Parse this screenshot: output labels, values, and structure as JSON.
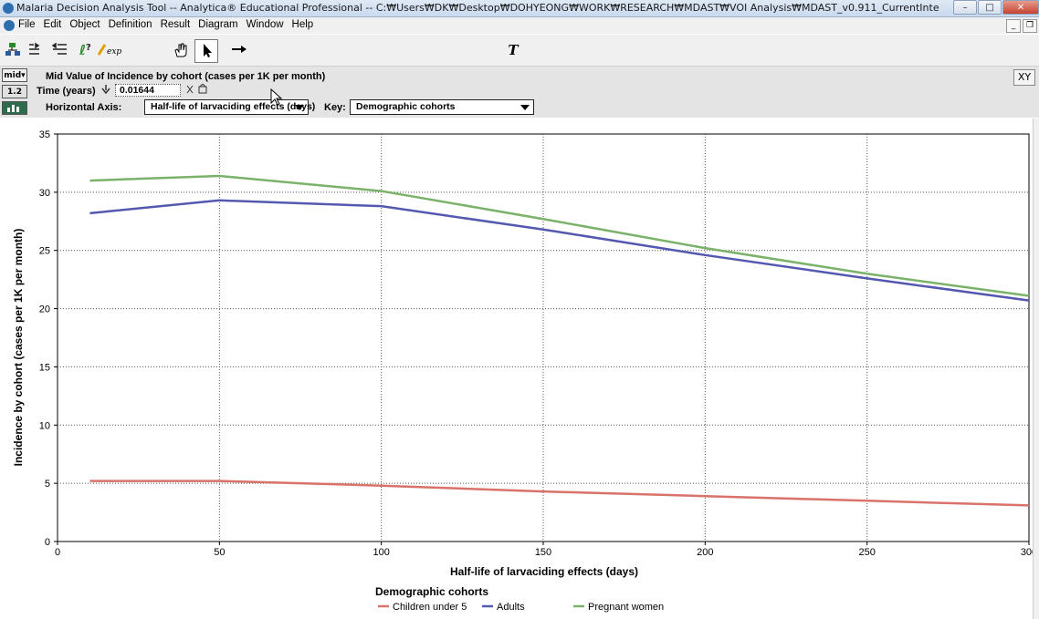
{
  "window": {
    "title": "Malaria Decision Analysis Tool -- Analytica® Educational Professional -- C:₩Users₩DK₩Desktop₩DOHYEONG₩WORK₩RESEARCH₩MDAST₩VOI Analysis₩MDAST_v0.911_CurrentInte"
  },
  "menu": [
    "File",
    "Edit",
    "Object",
    "Definition",
    "Result",
    "Diagram",
    "Window",
    "Help"
  ],
  "toolbar": {
    "tools": [
      "arrange-icon",
      "indent-icon",
      "outdent-icon",
      "help-query-icon",
      "expression-icon",
      "hand-browse-icon",
      "pointer-icon",
      "arrow-tool-icon",
      "decision-node-icon",
      "chance-node-icon",
      "objective-node-icon",
      "variable-node-icon",
      "constant-node-icon",
      "module-node-icon",
      "function-node-icon",
      "index-node-icon",
      "text-tool-icon"
    ],
    "text_tool_label": "T",
    "node_colors": [
      "#00cc00",
      "#00a0d8",
      "#00b8e0",
      "#e00000",
      "#0080c0",
      "#5020b0",
      "#c04000",
      "#a000a0"
    ]
  },
  "controls": {
    "mid_button": "mid▾",
    "table_button": "1.2",
    "chart_button": "▙",
    "result_title": "Mid Value of Incidence by cohort (cases per 1K per month)",
    "time_label": "Time (years)",
    "time_value": "0.01644",
    "horizontal_axis_label": "Horizontal Axis:",
    "horizontal_axis_value": "Half-life of larvaciding effects (days)",
    "key_label": "Key:",
    "key_value": "Demographic cohorts",
    "xy_button": "XY"
  },
  "chart_data": {
    "type": "line",
    "xlabel": "Half-life of larvaciding effects (days)",
    "ylabel": "Incidence by cohort (cases per 1K per month)",
    "xlim": [
      0,
      300
    ],
    "ylim": [
      0,
      35
    ],
    "xticks": [
      0,
      50,
      100,
      150,
      200,
      250,
      300
    ],
    "yticks": [
      0,
      5,
      10,
      15,
      20,
      25,
      30,
      35
    ],
    "grid": true,
    "legend_title": "Demographic cohorts",
    "legend_position": "bottom",
    "series": [
      {
        "name": "Children under 5",
        "color": "#d9726a",
        "x": [
          10,
          50,
          100,
          150,
          200,
          250,
          300
        ],
        "y": [
          5.2,
          5.2,
          4.8,
          4.3,
          3.9,
          3.5,
          3.1
        ]
      },
      {
        "name": "Adults",
        "color": "#5558b0",
        "x": [
          10,
          50,
          100,
          150,
          200,
          250,
          300
        ],
        "y": [
          28.2,
          29.3,
          28.8,
          26.8,
          24.6,
          22.6,
          20.7
        ]
      },
      {
        "name": "Pregnant women",
        "color": "#7ab26a",
        "x": [
          10,
          50,
          100,
          150,
          200,
          250,
          300
        ],
        "y": [
          31.0,
          31.4,
          30.1,
          27.7,
          25.2,
          23.0,
          21.1
        ]
      }
    ]
  }
}
